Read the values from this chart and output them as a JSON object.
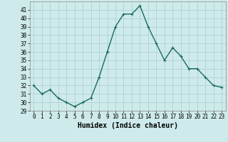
{
  "x": [
    0,
    1,
    2,
    3,
    4,
    5,
    6,
    7,
    8,
    9,
    10,
    11,
    12,
    13,
    14,
    15,
    16,
    17,
    18,
    19,
    20,
    21,
    22,
    23
  ],
  "y": [
    32,
    31,
    31.5,
    30.5,
    30,
    29.5,
    30,
    30.5,
    33,
    36,
    39,
    40.5,
    40.5,
    41.5,
    39,
    37,
    35,
    36.5,
    35.5,
    34,
    34,
    33,
    32,
    31.8
  ],
  "line_color": "#1a6b5a",
  "marker": "+",
  "marker_size": 3.5,
  "linewidth": 1.0,
  "xlabel": "Humidex (Indice chaleur)",
  "ylim": [
    29,
    42
  ],
  "xlim": [
    -0.5,
    23.5
  ],
  "yticks": [
    29,
    30,
    31,
    32,
    33,
    34,
    35,
    36,
    37,
    38,
    39,
    40,
    41
  ],
  "xticks": [
    0,
    1,
    2,
    3,
    4,
    5,
    6,
    7,
    8,
    9,
    10,
    11,
    12,
    13,
    14,
    15,
    16,
    17,
    18,
    19,
    20,
    21,
    22,
    23
  ],
  "bg_color": "#ceeaea",
  "grid_color": "#aacece",
  "xlabel_fontsize": 7,
  "tick_fontsize": 5.5
}
